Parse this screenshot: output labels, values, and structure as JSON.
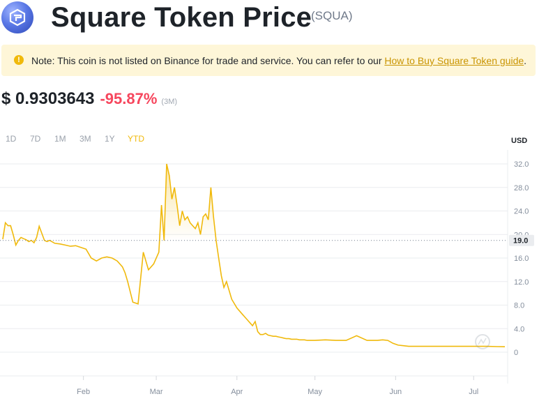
{
  "header": {
    "title": "Square Token Price",
    "symbol": "(SQUA)"
  },
  "note": {
    "icon": "alert-icon",
    "text": "Note: This coin is not listed on Binance for trade and service. You can refer to our ",
    "link": "How to Buy Square Token guide",
    "suffix": "."
  },
  "price": {
    "value": "$ 0.9303643",
    "change": "-95.87%",
    "period": "(3M)"
  },
  "ranges": [
    "1D",
    "7D",
    "1M",
    "3M",
    "1Y",
    "YTD"
  ],
  "active_range": "YTD",
  "currency": "USD",
  "colors": {
    "line": "#f0b90b",
    "negative": "#f6465d",
    "note_bg": "#fef6d8",
    "active": "#f0b90b"
  },
  "chart_data": {
    "type": "line",
    "xlabel": "",
    "ylabel": "USD",
    "ylim": [
      0,
      32
    ],
    "yticks": [
      "0",
      "4.0",
      "8.0",
      "12.0",
      "16.0",
      "20.0",
      "24.0",
      "28.0",
      "32.0"
    ],
    "current_label": "19.0",
    "x_tick_labels": [
      "Feb",
      "Mar",
      "Apr",
      "May",
      "Jun",
      "Jul"
    ],
    "x_tick_days": [
      31,
      59,
      90,
      120,
      151,
      181
    ],
    "x_domain_days": [
      0,
      193
    ],
    "grid": true,
    "legend": "none",
    "series": [
      {
        "x": [
          0,
          1,
          2,
          3,
          4,
          5,
          6,
          7,
          8,
          9,
          10,
          11,
          12,
          13,
          14,
          15,
          16,
          17,
          18,
          20,
          22,
          24,
          26,
          28,
          30,
          32,
          34,
          36,
          38,
          40,
          42,
          44,
          46,
          47,
          48,
          50,
          52,
          54,
          56,
          58,
          60,
          61,
          62,
          63,
          64,
          65,
          66,
          67,
          68,
          69,
          70,
          71,
          72,
          73,
          74,
          75,
          76,
          77,
          78,
          79,
          80,
          81,
          82,
          83,
          84,
          85,
          86,
          88,
          90,
          92,
          93,
          94,
          95,
          96,
          97,
          98,
          99,
          100,
          101,
          102,
          103,
          104,
          105,
          106,
          107,
          108,
          109,
          110,
          111,
          112,
          113,
          114,
          115,
          116,
          117,
          118,
          120,
          124,
          128,
          132,
          136,
          140,
          142,
          144,
          146,
          148,
          150,
          152,
          154,
          156,
          158,
          162,
          166,
          170,
          174,
          178,
          182,
          186,
          190,
          193
        ],
        "y": [
          19.2,
          22.0,
          21.5,
          21.5,
          20.0,
          18.2,
          19.0,
          19.5,
          19.3,
          19.1,
          18.8,
          19.0,
          18.6,
          19.5,
          21.4,
          20.2,
          19.0,
          18.8,
          19.0,
          18.5,
          18.4,
          18.2,
          18.0,
          18.1,
          17.8,
          17.5,
          16.0,
          15.5,
          16.0,
          16.2,
          16.0,
          15.5,
          14.5,
          13.5,
          12.0,
          8.5,
          8.2,
          17.0,
          14.0,
          15.0,
          17.0,
          25.0,
          19.0,
          32.0,
          30.0,
          26.0,
          28.0,
          25.0,
          21.5,
          24.0,
          22.5,
          23.0,
          22.0,
          21.5,
          21.0,
          22.0,
          20.0,
          23.0,
          23.5,
          22.5,
          28.0,
          23.0,
          19.0,
          16.0,
          13.0,
          11.0,
          12.0,
          9.0,
          7.5,
          6.5,
          6.0,
          5.5,
          5.0,
          4.5,
          5.2,
          3.5,
          3.0,
          3.0,
          3.2,
          2.9,
          2.8,
          2.7,
          2.7,
          2.6,
          2.5,
          2.4,
          2.3,
          2.3,
          2.2,
          2.2,
          2.2,
          2.1,
          2.1,
          2.1,
          2.0,
          2.0,
          2.0,
          2.1,
          2.0,
          2.0,
          2.8,
          2.0,
          2.0,
          2.0,
          2.1,
          2.0,
          1.5,
          1.2,
          1.1,
          1.0,
          1.0,
          1.0,
          1.0,
          1.0,
          1.0,
          1.0,
          1.0,
          1.0,
          0.95,
          0.93
        ]
      }
    ]
  }
}
